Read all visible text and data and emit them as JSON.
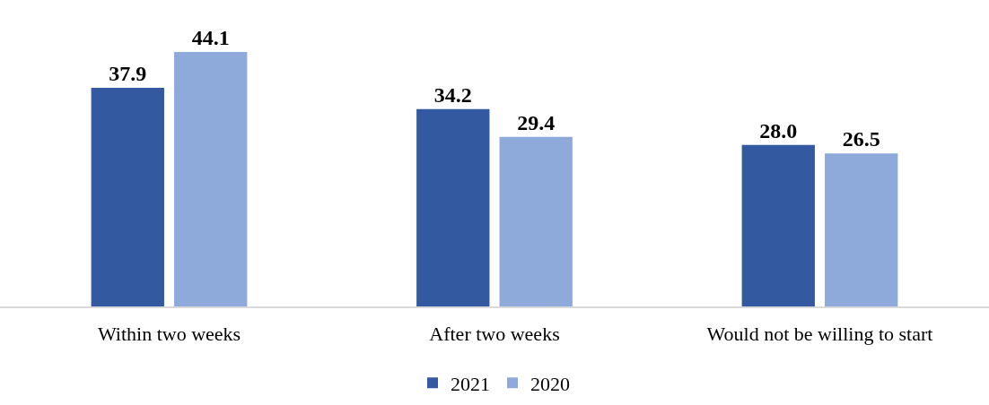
{
  "chart_data": {
    "type": "bar",
    "categories": [
      "Within two weeks",
      "After two weeks",
      "Would not be willing to start"
    ],
    "series": [
      {
        "name": "2021",
        "color": "#3359a0",
        "values": [
          37.9,
          34.2,
          28.0
        ],
        "value_labels": [
          "37.9",
          "34.2",
          "28.0"
        ]
      },
      {
        "name": "2020",
        "color": "#8eaadb",
        "values": [
          44.1,
          29.4,
          26.5
        ],
        "value_labels": [
          "44.1",
          "29.4",
          "26.5"
        ]
      }
    ],
    "tick_labels": "x",
    "grid": false,
    "legend": "bottom"
  }
}
